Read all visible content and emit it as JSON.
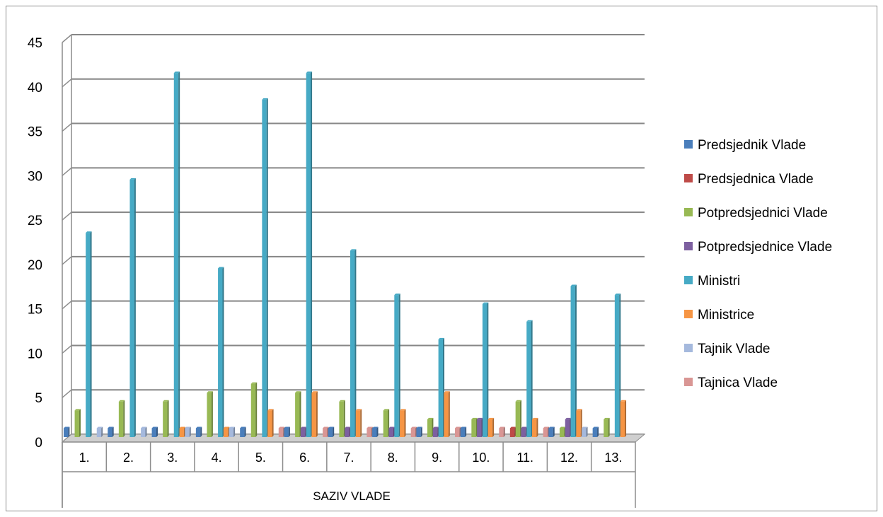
{
  "chart_data": {
    "type": "bar",
    "title": "",
    "xlabel": "SAZIV VLADE",
    "ylabel": "",
    "ylim": [
      0,
      45
    ],
    "yticks": [
      "0",
      "5",
      "10",
      "15",
      "20",
      "25",
      "30",
      "35",
      "40",
      "45"
    ],
    "grid": true,
    "legend_position": "right",
    "categories": [
      "1.",
      "2.",
      "3.",
      "4.",
      "5.",
      "6.",
      "7.",
      "8.",
      "9.",
      "10.",
      "11.",
      "12.",
      "13."
    ],
    "series": [
      {
        "name": "Predsjednik Vlade",
        "color": "#4a7ebb",
        "values": [
          1,
          1,
          1,
          1,
          1,
          1,
          1,
          1,
          1,
          1,
          0,
          1,
          1
        ]
      },
      {
        "name": "Predsjednica Vlade",
        "color": "#be4b48",
        "values": [
          0,
          0,
          0,
          0,
          0,
          0,
          0,
          0,
          0,
          0,
          1,
          0,
          0
        ]
      },
      {
        "name": "Potpredsjednici Vlade",
        "color": "#98b954",
        "values": [
          3,
          4,
          4,
          5,
          6,
          5,
          4,
          3,
          2,
          2,
          4,
          1,
          2
        ]
      },
      {
        "name": "Potpredsjednice Vlade",
        "color": "#7d60a0",
        "values": [
          0,
          0,
          0,
          0,
          0,
          1,
          1,
          1,
          1,
          2,
          1,
          2,
          0
        ]
      },
      {
        "name": "Ministri",
        "color": "#46aac5",
        "values": [
          23,
          29,
          41,
          19,
          38,
          41,
          21,
          16,
          11,
          15,
          13,
          17,
          16
        ]
      },
      {
        "name": "Ministrice",
        "color": "#f69544",
        "values": [
          0,
          0,
          1,
          1,
          3,
          5,
          3,
          3,
          5,
          2,
          2,
          3,
          4
        ]
      },
      {
        "name": "Tajnik Vlade",
        "color": "#a5b9dd",
        "values": [
          1,
          1,
          1,
          1,
          0,
          0,
          0,
          0,
          0,
          0,
          0,
          1,
          0
        ]
      },
      {
        "name": "Tajnica Vlade",
        "color": "#d99694",
        "values": [
          0,
          0,
          0,
          0,
          1,
          1,
          1,
          1,
          1,
          1,
          1,
          0,
          0
        ]
      }
    ]
  }
}
